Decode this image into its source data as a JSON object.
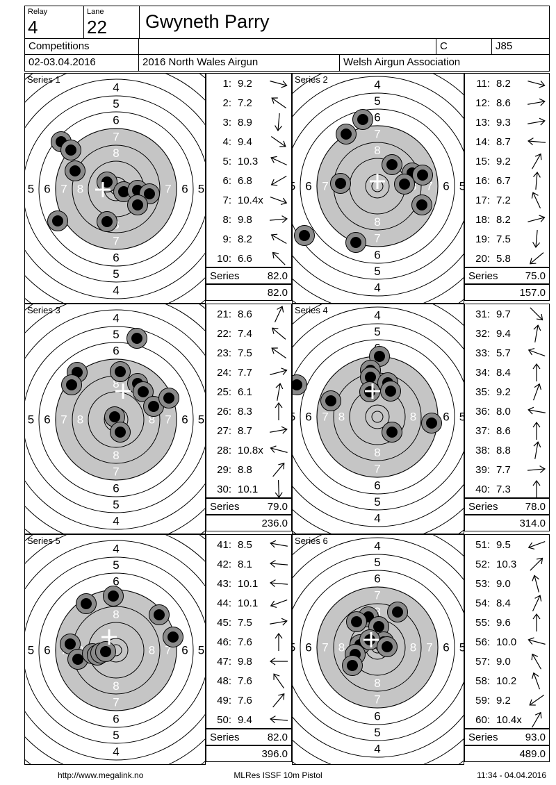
{
  "header": {
    "relay_label": "Relay",
    "relay_value": "4",
    "lane_label": "Lane",
    "lane_value": "22",
    "shooter_name": "Gwyneth Parry",
    "competitions_label": "Competitions",
    "class_value": "C",
    "category_value": "J85",
    "date": "02-03.04.2016",
    "competition_name": "2016 North Wales Airgun",
    "association": "Welsh Airgun Association"
  },
  "footer": {
    "url": "http://www.megalink.no",
    "report_type": "MLRes ISSF 10m Pistol",
    "timestamp": "11:34 - 04.04.2016"
  },
  "colors": {
    "zone_gray": "#c5c5c5",
    "hole_ring": "#8a8a8a",
    "hole_core": "#000000",
    "line": "#000000",
    "label_white": "#ffffff",
    "label_black": "#000000"
  },
  "target": {
    "ring_numbers": [
      "4",
      "5",
      "6",
      "7",
      "8"
    ],
    "white_from_ring": 7,
    "label_distances": {
      "4": 146,
      "5": 122.5,
      "6": 99,
      "7": 75,
      "8": 51.5
    },
    "circle_radii": [
      8,
      17,
      40,
      63,
      87,
      111,
      134,
      158,
      181,
      205
    ],
    "gray_radius": 88
  },
  "series": [
    {
      "title": "Series 1",
      "series_label": "Series",
      "series_total": "82.0",
      "running_total": "82.0",
      "shots": [
        {
          "label": "1:",
          "value": "9.2",
          "arrow_deg": 15
        },
        {
          "label": "2:",
          "value": "7.2",
          "arrow_deg": 215
        },
        {
          "label": "3:",
          "value": "8.9",
          "arrow_deg": 95
        },
        {
          "label": "4:",
          "value": "9.4",
          "arrow_deg": 35
        },
        {
          "label": "5:",
          "value": "10.3",
          "arrow_deg": 205
        },
        {
          "label": "6:",
          "value": "6.8",
          "arrow_deg": 150
        },
        {
          "label": "7:",
          "value": "10.4x",
          "arrow_deg": 20
        },
        {
          "label": "8:",
          "value": "9.8",
          "arrow_deg": 355
        },
        {
          "label": "9:",
          "value": "8.2",
          "arrow_deg": 210
        },
        {
          "label": "10:",
          "value": "6.6",
          "arrow_deg": 225
        }
      ],
      "mpi": [
        -19,
        1
      ],
      "holes": [
        [
          -79,
          -68
        ],
        [
          -65,
          -56
        ],
        [
          -59,
          -26
        ],
        [
          -13,
          -10
        ],
        [
          11,
          4
        ],
        [
          31,
          2
        ],
        [
          48,
          7
        ],
        [
          31,
          23
        ],
        [
          -13,
          47
        ],
        [
          -84,
          46
        ]
      ]
    },
    {
      "title": "Series 2",
      "series_label": "Series",
      "series_total": "75.0",
      "running_total": "157.0",
      "shots": [
        {
          "label": "11:",
          "value": "8.2",
          "arrow_deg": 15
        },
        {
          "label": "12:",
          "value": "8.6",
          "arrow_deg": 350
        },
        {
          "label": "13:",
          "value": "9.3",
          "arrow_deg": 350
        },
        {
          "label": "14:",
          "value": "8.7",
          "arrow_deg": 185
        },
        {
          "label": "15:",
          "value": "9.2",
          "arrow_deg": 300
        },
        {
          "label": "16:",
          "value": "6.7",
          "arrow_deg": 275
        },
        {
          "label": "17:",
          "value": "7.2",
          "arrow_deg": 245
        },
        {
          "label": "18:",
          "value": "8.2",
          "arrow_deg": 345
        },
        {
          "label": "19:",
          "value": "7.5",
          "arrow_deg": 95
        },
        {
          "label": "20:",
          "value": "5.8",
          "arrow_deg": 140
        }
      ],
      "mpi": [
        0,
        -7
      ],
      "holes": [
        [
          -21,
          -96
        ],
        [
          -45,
          -75
        ],
        [
          21,
          -31
        ],
        [
          50,
          -19
        ],
        [
          65,
          -16
        ],
        [
          39,
          -3
        ],
        [
          -53,
          -4
        ],
        [
          64,
          27
        ],
        [
          -105,
          71
        ],
        [
          -31,
          81
        ]
      ]
    },
    {
      "title": "Series 3",
      "series_label": "Series",
      "series_total": "79.0",
      "running_total": "236.0",
      "shots": [
        {
          "label": "21:",
          "value": "8.6",
          "arrow_deg": 295
        },
        {
          "label": "22:",
          "value": "7.4",
          "arrow_deg": 220
        },
        {
          "label": "23:",
          "value": "7.5",
          "arrow_deg": 215
        },
        {
          "label": "24:",
          "value": "7.7",
          "arrow_deg": 345
        },
        {
          "label": "25:",
          "value": "6.1",
          "arrow_deg": 280
        },
        {
          "label": "26:",
          "value": "8.3",
          "arrow_deg": 270
        },
        {
          "label": "27:",
          "value": "8.7",
          "arrow_deg": 350
        },
        {
          "label": "28:",
          "value": "10.8x",
          "arrow_deg": 195
        },
        {
          "label": "29:",
          "value": "8.8",
          "arrow_deg": 310
        },
        {
          "label": "30:",
          "value": "10.1",
          "arrow_deg": 88
        }
      ],
      "mpi": [
        10,
        -41
      ],
      "holes": [
        [
          30,
          -117
        ],
        [
          -56,
          -68
        ],
        [
          -64,
          -50
        ],
        [
          6,
          -69
        ],
        [
          31,
          -52
        ],
        [
          39,
          -40
        ],
        [
          54,
          -19
        ],
        [
          76,
          -31
        ],
        [
          -2,
          -4
        ],
        [
          6,
          18
        ]
      ]
    },
    {
      "title": "Series 4",
      "series_label": "Series",
      "series_total": "78.0",
      "running_total": "314.0",
      "shots": [
        {
          "label": "31:",
          "value": "9.7",
          "arrow_deg": 45
        },
        {
          "label": "32:",
          "value": "9.4",
          "arrow_deg": 280
        },
        {
          "label": "33:",
          "value": "5.7",
          "arrow_deg": 200
        },
        {
          "label": "34:",
          "value": "8.4",
          "arrow_deg": 270
        },
        {
          "label": "35:",
          "value": "9.2",
          "arrow_deg": 290
        },
        {
          "label": "36:",
          "value": "8.0",
          "arrow_deg": 190
        },
        {
          "label": "37:",
          "value": "8.6",
          "arrow_deg": 270
        },
        {
          "label": "38:",
          "value": "8.8",
          "arrow_deg": 280
        },
        {
          "label": "39:",
          "value": "7.7",
          "arrow_deg": 355
        },
        {
          "label": "40:",
          "value": "7.3",
          "arrow_deg": 270
        }
      ],
      "mpi": [
        -7,
        -37
      ],
      "holes": [
        [
          3,
          -87
        ],
        [
          -10,
          -67
        ],
        [
          -10,
          -57
        ],
        [
          15,
          -49
        ],
        [
          -11,
          -36
        ],
        [
          19,
          -37
        ],
        [
          -116,
          -46
        ],
        [
          -67,
          -23
        ],
        [
          21,
          22
        ],
        [
          78,
          9
        ]
      ]
    },
    {
      "title": "Series 5",
      "series_label": "Series",
      "series_total": "82.0",
      "running_total": "396.0",
      "shots": [
        {
          "label": "41:",
          "value": "8.5",
          "arrow_deg": 190
        },
        {
          "label": "42:",
          "value": "8.1",
          "arrow_deg": 185
        },
        {
          "label": "43:",
          "value": "10.1",
          "arrow_deg": 185
        },
        {
          "label": "44:",
          "value": "10.1",
          "arrow_deg": 160
        },
        {
          "label": "45:",
          "value": "7.5",
          "arrow_deg": 350
        },
        {
          "label": "46:",
          "value": "7.6",
          "arrow_deg": 270
        },
        {
          "label": "47:",
          "value": "9.8",
          "arrow_deg": 180
        },
        {
          "label": "48:",
          "value": "7.6",
          "arrow_deg": 235
        },
        {
          "label": "49:",
          "value": "7.6",
          "arrow_deg": 310
        },
        {
          "label": "50:",
          "value": "9.4",
          "arrow_deg": 185
        }
      ],
      "mpi": [
        -10,
        -19
      ],
      "holes": [
        [
          -4,
          -78
        ],
        [
          -43,
          -67
        ],
        [
          62,
          -51
        ],
        [
          82,
          -19
        ],
        [
          -66,
          -9
        ],
        [
          -55,
          13
        ],
        [
          -34,
          5
        ],
        [
          -27,
          7
        ],
        [
          -22,
          4
        ],
        [
          -15,
          2
        ]
      ]
    },
    {
      "title": "Series 6",
      "series_label": "Series",
      "series_total": "93.0",
      "running_total": "489.0",
      "shots": [
        {
          "label": "51:",
          "value": "9.5",
          "arrow_deg": 160
        },
        {
          "label": "52:",
          "value": "10.3",
          "arrow_deg": 315
        },
        {
          "label": "53:",
          "value": "9.0",
          "arrow_deg": 255
        },
        {
          "label": "54:",
          "value": "8.4",
          "arrow_deg": 295
        },
        {
          "label": "55:",
          "value": "9.6",
          "arrow_deg": 270
        },
        {
          "label": "56:",
          "value": "10.0",
          "arrow_deg": 195
        },
        {
          "label": "57:",
          "value": "9.0",
          "arrow_deg": 240
        },
        {
          "label": "58:",
          "value": "10.2",
          "arrow_deg": 250
        },
        {
          "label": "59:",
          "value": "9.2",
          "arrow_deg": 145
        },
        {
          "label": "60:",
          "value": "10.4x",
          "arrow_deg": 300
        }
      ],
      "mpi": [
        -9,
        -11
      ],
      "holes": [
        [
          29,
          -51
        ],
        [
          -13,
          -44
        ],
        [
          -30,
          -37
        ],
        [
          2,
          -30
        ],
        [
          -25,
          -4
        ],
        [
          9,
          -8
        ],
        [
          -11,
          -11
        ],
        [
          14,
          -1
        ],
        [
          -32,
          10
        ],
        [
          -36,
          26
        ]
      ]
    }
  ]
}
